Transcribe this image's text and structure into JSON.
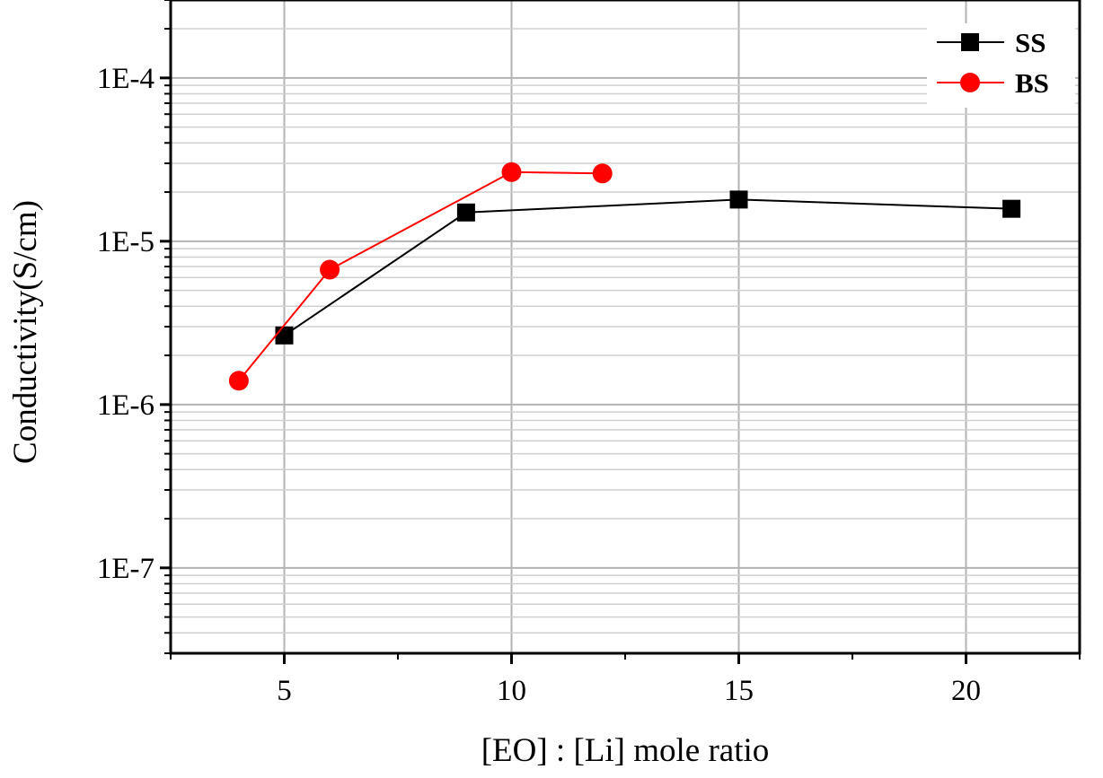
{
  "chart_data": {
    "type": "line",
    "title": "",
    "xlabel": "[EO] : [Li] mole ratio",
    "ylabel": "Conductivity(S/cm)",
    "x_scale": "linear",
    "y_scale": "log",
    "xlim": [
      2.5,
      22.5
    ],
    "ylim": [
      3e-08,
      0.0003
    ],
    "x_ticks": [
      5,
      10,
      15,
      20
    ],
    "x_tick_labels": [
      "5",
      "10",
      "15",
      "20"
    ],
    "y_ticks": [
      1e-07,
      1e-06,
      1e-05,
      0.0001
    ],
    "y_tick_labels": [
      "1E-7",
      "1E-6",
      "1E-5",
      "1E-4"
    ],
    "grid": true,
    "legend_position": "top-right",
    "series": [
      {
        "name": "SS",
        "color": "#000000",
        "marker": "square",
        "x": [
          5,
          9,
          15,
          21
        ],
        "y": [
          2.65e-06,
          1.5e-05,
          1.8e-05,
          1.58e-05
        ]
      },
      {
        "name": "BS",
        "color": "#ff0000",
        "marker": "circle",
        "x": [
          4,
          6,
          10,
          12
        ],
        "y": [
          1.4e-06,
          6.7e-06,
          2.65e-05,
          2.6e-05
        ]
      }
    ]
  }
}
